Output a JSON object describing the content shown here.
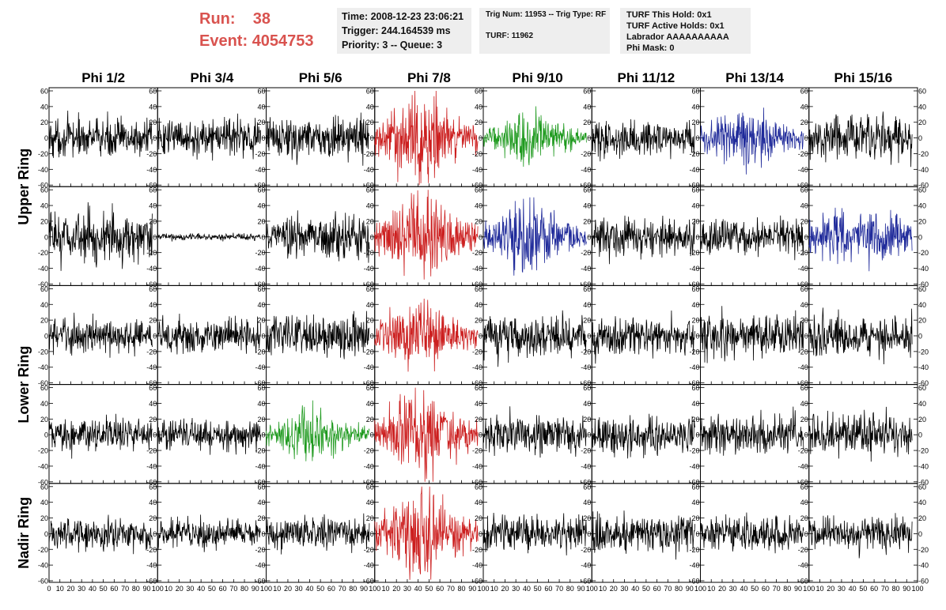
{
  "header": {
    "run_label": "Run:",
    "run_value": "38",
    "event_label": "Event:",
    "event_value": "4054753",
    "time": "Time: 2008-12-23 23:06:21",
    "trigger": "Trigger: 244.164539 ms",
    "priority": "Priority: 3 -- Queue: 3",
    "trig_num": "Trig Num: 11953 -- Trig Type: RF",
    "turf": "TURF: 11962",
    "turf_this_hold": "TURF This Hold: 0x1",
    "turf_active_holds": "TURF Active Holds: 0x1",
    "labrador": "Labrador AAAAAAAAAA",
    "phi_mask": "Phi Mask: 0"
  },
  "colors": {
    "run_text": "#d9534f",
    "info_box_bg": "#eeeeee",
    "trace_black": "#000000",
    "trace_red": "#cc1f1f",
    "trace_green": "#1f9a1f",
    "trace_blue": "#1f2a9a"
  },
  "chart_data": {
    "type": "line",
    "title": "",
    "column_labels": [
      "Phi 1/2",
      "Phi 3/4",
      "Phi 5/6",
      "Phi 7/8",
      "Phi 9/10",
      "Phi 11/12",
      "Phi 13/14",
      "Phi 15/16"
    ],
    "row_labels": [
      "Upper Ring",
      "Lower Ring",
      "Nadir Ring"
    ],
    "row_label_spans": [
      2,
      2,
      1
    ],
    "panel_rows": 5,
    "xlim": [
      0,
      100
    ],
    "ylim": [
      -60,
      60
    ],
    "x_ticks": [
      0,
      10,
      20,
      30,
      40,
      50,
      60,
      70,
      80,
      90,
      100
    ],
    "x_tick_labels": [
      "0",
      "10",
      "20",
      "30",
      "40",
      "50",
      "60",
      "70",
      "80",
      "90",
      "100"
    ],
    "y_ticks": [
      -60,
      -40,
      -20,
      0,
      20,
      40,
      60
    ],
    "y_tick_labels": [
      "-60",
      "-40",
      "-20",
      "0",
      "20",
      "40",
      "60"
    ],
    "trace_x_range": [
      0,
      95
    ],
    "trace_samples": 260,
    "panel_colors": [
      [
        "black",
        "black",
        "black",
        "red",
        "green",
        "black",
        "blue",
        "black"
      ],
      [
        "black",
        "black",
        "black",
        "red",
        "blue",
        "black",
        "black",
        "blue"
      ],
      [
        "black",
        "black",
        "black",
        "red",
        "black",
        "black",
        "black",
        "black"
      ],
      [
        "black",
        "black",
        "green",
        "red",
        "black",
        "black",
        "black",
        "black"
      ],
      [
        "black",
        "black",
        "black",
        "red",
        "black",
        "black",
        "black",
        "black"
      ]
    ],
    "panel_amplitudes": [
      [
        12,
        11,
        13,
        26,
        15,
        11,
        17,
        14
      ],
      [
        16,
        2,
        13,
        24,
        20,
        12,
        11,
        16
      ],
      [
        11,
        11,
        13,
        21,
        14,
        12,
        14,
        13
      ],
      [
        11,
        10,
        15,
        25,
        12,
        12,
        12,
        13
      ],
      [
        10,
        9,
        10,
        25,
        11,
        12,
        11,
        11
      ]
    ],
    "panel_envelope": [
      [
        "flat",
        "flat",
        "flat",
        "burst",
        "burst",
        "flat",
        "burst",
        "flat"
      ],
      [
        "flat",
        "flat",
        "flat",
        "burst",
        "burst",
        "flat",
        "flat",
        "flat"
      ],
      [
        "flat",
        "flat",
        "flat",
        "burst",
        "flat",
        "flat",
        "flat",
        "flat"
      ],
      [
        "flat",
        "flat",
        "burst",
        "burst",
        "flat",
        "flat",
        "flat",
        "flat"
      ],
      [
        "flat",
        "flat",
        "flat",
        "burst",
        "flat",
        "flat",
        "flat",
        "flat"
      ]
    ]
  }
}
